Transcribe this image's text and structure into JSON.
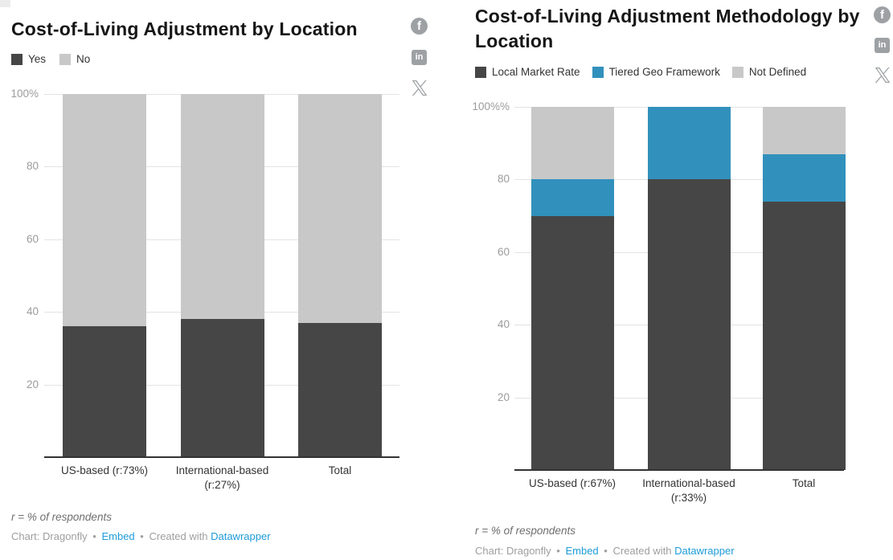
{
  "chart_data": [
    {
      "type": "bar",
      "stacked": true,
      "unit": "%",
      "title": "Cost-of-Living Adjustment by Location",
      "categories": [
        "US-based (r:73%)",
        "International-based (r:27%)",
        "Total"
      ],
      "series": [
        {
          "name": "Yes",
          "color": "#464646",
          "values": [
            36,
            38,
            37
          ]
        },
        {
          "name": "No",
          "color": "#c8c8c8",
          "values": [
            64,
            62,
            63
          ]
        }
      ],
      "ylim": [
        0,
        100
      ],
      "y_ticks": [
        {
          "label": "100%",
          "value": 100
        },
        {
          "label": "80",
          "value": 80
        },
        {
          "label": "60",
          "value": 60
        },
        {
          "label": "40",
          "value": 40
        },
        {
          "label": "20",
          "value": 20
        }
      ],
      "grid": true,
      "legend_position": "top-left",
      "footnote": "r = % of respondents",
      "footer": {
        "credit": "Chart: Dragonfly",
        "separator": "•",
        "embed_link": "Embed",
        "created_text": "Created with",
        "tool_link": "Datawrapper"
      }
    },
    {
      "type": "bar",
      "stacked": true,
      "unit": "%",
      "title": "Cost-of-Living Adjustment Methodology by Location",
      "categories": [
        "US-based (r:67%)",
        "International-based (r:33%)",
        "Total"
      ],
      "series": [
        {
          "name": "Local Market Rate",
          "color": "#464646",
          "values": [
            70,
            80,
            74
          ]
        },
        {
          "name": "Tiered Geo Framework",
          "color": "#3191bc",
          "values": [
            10,
            20,
            13
          ]
        },
        {
          "name": "Not Defined",
          "color": "#c8c8c8",
          "values": [
            20,
            0,
            13
          ]
        }
      ],
      "ylim": [
        0,
        100
      ],
      "y_ticks": [
        {
          "label": "100%%",
          "value": 100
        },
        {
          "label": "80",
          "value": 80
        },
        {
          "label": "60",
          "value": 60
        },
        {
          "label": "40",
          "value": 40
        },
        {
          "label": "20",
          "value": 20
        }
      ],
      "grid": true,
      "legend_position": "top-left",
      "footnote": "r = % of respondents",
      "footer": {
        "credit": "Chart: Dragonfly",
        "separator": "•",
        "embed_link": "Embed",
        "created_text": "Created with",
        "tool_link": "Datawrapper"
      }
    }
  ],
  "social": {
    "icons": [
      {
        "name": "facebook",
        "glyph": "f"
      },
      {
        "name": "linkedin",
        "glyph": "in"
      },
      {
        "name": "x",
        "glyph": "X"
      }
    ]
  },
  "colors": {
    "link_blue": "#1e9bd7",
    "axis_label_gray": "#9b9b9b",
    "gridline_gray": "#e3e3e3",
    "baseline_dark": "#333333",
    "bar_dark": "#464646",
    "bar_blue": "#3191bc",
    "bar_light_gray": "#c8c8c8",
    "social_icon_gray": "#9da1a4"
  }
}
